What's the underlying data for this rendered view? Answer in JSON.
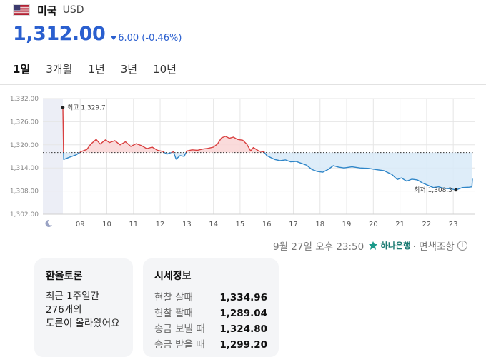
{
  "header": {
    "country": "미국",
    "code": "USD"
  },
  "price": {
    "value": "1,312.00",
    "change": "6.00 (-0.46%)"
  },
  "tabs": [
    {
      "label": "1일",
      "active": true
    },
    {
      "label": "3개월",
      "active": false
    },
    {
      "label": "1년",
      "active": false
    },
    {
      "label": "3년",
      "active": false
    },
    {
      "label": "10년",
      "active": false
    }
  ],
  "chart_data": {
    "type": "line",
    "x_ticks": [
      "09",
      "10",
      "11",
      "12",
      "13",
      "14",
      "15",
      "16",
      "17",
      "18",
      "19",
      "20",
      "21",
      "22",
      "23"
    ],
    "y_ticks": [
      "1,332.00",
      "1,326.00",
      "1,320.00",
      "1,314.00",
      "1,308.00",
      "1,302.00"
    ],
    "ylim": [
      1302,
      1332
    ],
    "xlim": [
      7.6,
      23.8
    ],
    "reference": 1318.0,
    "grid": true,
    "points": [
      [
        8.35,
        1329.7
      ],
      [
        8.38,
        1316.2
      ],
      [
        8.6,
        1316.8
      ],
      [
        8.85,
        1317.4
      ],
      [
        9.05,
        1318.3
      ],
      [
        9.25,
        1318.8
      ],
      [
        9.4,
        1320.2
      ],
      [
        9.6,
        1321.4
      ],
      [
        9.75,
        1320.2
      ],
      [
        9.95,
        1321.3
      ],
      [
        10.1,
        1320.6
      ],
      [
        10.3,
        1321.1
      ],
      [
        10.5,
        1320.0
      ],
      [
        10.7,
        1320.8
      ],
      [
        10.9,
        1319.6
      ],
      [
        11.1,
        1320.3
      ],
      [
        11.3,
        1319.8
      ],
      [
        11.5,
        1319.0
      ],
      [
        11.7,
        1319.4
      ],
      [
        11.9,
        1318.6
      ],
      [
        12.1,
        1318.3
      ],
      [
        12.25,
        1317.6
      ],
      [
        12.5,
        1318.2
      ],
      [
        12.6,
        1316.3
      ],
      [
        12.75,
        1317.2
      ],
      [
        12.9,
        1317.0
      ],
      [
        13.0,
        1318.4
      ],
      [
        13.2,
        1318.7
      ],
      [
        13.4,
        1318.6
      ],
      [
        13.6,
        1318.9
      ],
      [
        13.8,
        1319.1
      ],
      [
        14.0,
        1319.4
      ],
      [
        14.15,
        1320.2
      ],
      [
        14.3,
        1321.8
      ],
      [
        14.45,
        1322.2
      ],
      [
        14.6,
        1321.7
      ],
      [
        14.75,
        1322.0
      ],
      [
        14.9,
        1321.4
      ],
      [
        15.1,
        1321.2
      ],
      [
        15.25,
        1320.2
      ],
      [
        15.4,
        1318.4
      ],
      [
        15.5,
        1319.3
      ],
      [
        15.7,
        1318.4
      ],
      [
        15.9,
        1318.2
      ],
      [
        16.0,
        1317.2
      ],
      [
        16.15,
        1316.7
      ],
      [
        16.3,
        1316.2
      ],
      [
        16.5,
        1315.9
      ],
      [
        16.7,
        1316.1
      ],
      [
        16.9,
        1315.6
      ],
      [
        17.1,
        1315.7
      ],
      [
        17.3,
        1315.2
      ],
      [
        17.5,
        1314.7
      ],
      [
        17.7,
        1313.6
      ],
      [
        17.9,
        1313.1
      ],
      [
        18.1,
        1312.9
      ],
      [
        18.3,
        1313.6
      ],
      [
        18.5,
        1314.6
      ],
      [
        18.7,
        1314.2
      ],
      [
        18.9,
        1314.0
      ],
      [
        19.2,
        1314.3
      ],
      [
        19.5,
        1314.0
      ],
      [
        19.8,
        1313.9
      ],
      [
        20.1,
        1313.6
      ],
      [
        20.4,
        1313.3
      ],
      [
        20.7,
        1312.3
      ],
      [
        20.9,
        1311.0
      ],
      [
        21.05,
        1311.4
      ],
      [
        21.25,
        1310.6
      ],
      [
        21.45,
        1311.1
      ],
      [
        21.65,
        1310.9
      ],
      [
        21.85,
        1310.1
      ],
      [
        22.05,
        1309.5
      ],
      [
        22.25,
        1308.9
      ],
      [
        22.45,
        1309.1
      ],
      [
        22.65,
        1308.7
      ],
      [
        22.9,
        1308.6
      ],
      [
        23.1,
        1308.3
      ],
      [
        23.35,
        1308.9
      ],
      [
        23.6,
        1309.0
      ],
      [
        23.7,
        1309.1
      ],
      [
        23.72,
        1311.2
      ]
    ],
    "annotations": {
      "high": {
        "label": "최고 1,329.7",
        "x": 8.35,
        "y": 1329.7
      },
      "low": {
        "label": "최저 1,308.3",
        "x": 23.1,
        "y": 1308.3
      }
    },
    "colors": {
      "up": "#d94040",
      "down": "#2f86c8",
      "up_fill": "#f9d5d5",
      "down_fill": "#d8eaf8",
      "grid": "#e6e6e6",
      "reference": "#333333"
    }
  },
  "source": {
    "datetime": "9월 27일 오후 23:50",
    "bank": "하나은행",
    "note": "· 면책조항"
  },
  "forum": {
    "title": "환율토론",
    "line1": "최근 1주일간",
    "line2": "276개의",
    "line3": "토론이 올라왔어요"
  },
  "rates": {
    "title": "시세정보",
    "items": [
      {
        "label": "현찰 살때",
        "value": "1,334.96"
      },
      {
        "label": "현찰 팔때",
        "value": "1,289.04"
      },
      {
        "label": "송금 보낼 때",
        "value": "1,324.80"
      },
      {
        "label": "송금 받을 때",
        "value": "1,299.20"
      }
    ]
  }
}
